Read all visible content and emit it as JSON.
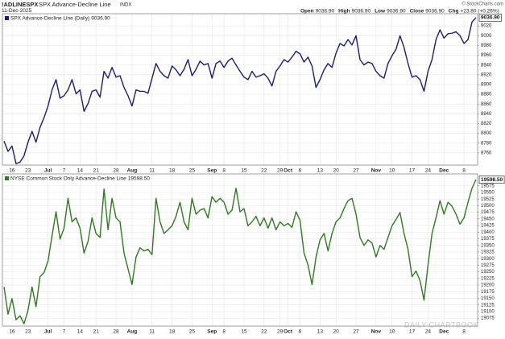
{
  "header": {
    "symbol": "!ADLINESPX",
    "name": "SPX Advance-Decline Line",
    "exchange": "INDX",
    "date": "11-Dec-2025",
    "quote": [
      {
        "label": "Open",
        "value": "9036.90"
      },
      {
        "label": "High",
        "value": "9036.90"
      },
      {
        "label": "Low",
        "value": "9036.90"
      },
      {
        "label": "Close",
        "value": "9036.90"
      },
      {
        "label": "Chg",
        "value": "+23.80 (+0.26%)"
      }
    ],
    "copyright": "© StockCharts.com",
    "watermark": "DAILY CHARTBOOK"
  },
  "chart_data": [
    {
      "type": "line",
      "grid": true,
      "categories": [
        null,
        null,
        "16",
        null,
        null,
        null,
        "23",
        null,
        null,
        null,
        null,
        "Jul",
        null,
        null,
        null,
        "7",
        null,
        null,
        null,
        "14",
        null,
        null,
        null,
        "21",
        null,
        null,
        null,
        null,
        "28",
        null,
        null,
        null,
        "Aug",
        null,
        null,
        null,
        null,
        "11",
        null,
        null,
        null,
        null,
        "18",
        null,
        null,
        null,
        null,
        "25",
        null,
        null,
        null,
        null,
        "Sep",
        null,
        null,
        "8",
        null,
        null,
        null,
        null,
        "15",
        null,
        null,
        null,
        null,
        "22",
        null,
        null,
        null,
        "29",
        null,
        "Oct",
        null,
        null,
        "6",
        null,
        null,
        null,
        null,
        "13",
        null,
        null,
        null,
        "20",
        null,
        null,
        null,
        null,
        "27",
        null,
        null,
        null,
        null,
        "Nov",
        null,
        null,
        null,
        "10",
        null,
        null,
        null,
        null,
        "17",
        null,
        null,
        null,
        "24",
        null,
        null,
        null,
        "Dec",
        null,
        null,
        null,
        null,
        "8",
        null,
        null,
        null
      ],
      "series": [
        {
          "name": "SPX Advance-Decline Line (Daily)",
          "color": "#1c1c78",
          "last_value_label": "9036.90",
          "values": [
            8784,
            8763,
            8774,
            8738,
            8741,
            8754,
            8782,
            8804,
            8782,
            8812,
            8832,
            8856,
            8889,
            8910,
            8872,
            8877,
            8889,
            8910,
            8881,
            8889,
            8845,
            8861,
            8886,
            8889,
            8874,
            8927,
            8913,
            8935,
            8915,
            8918,
            8894,
            8877,
            8856,
            8889,
            8886,
            8886,
            8882,
            8913,
            8943,
            8927,
            8918,
            8913,
            8938,
            8930,
            8918,
            8931,
            8951,
            8918,
            8931,
            8948,
            8940,
            8943,
            8913,
            8943,
            8948,
            8935,
            8948,
            8954,
            8940,
            8927,
            8915,
            8910,
            8927,
            8915,
            8918,
            8922,
            8913,
            8897,
            8927,
            8938,
            8951,
            8946,
            8956,
            8968,
            8963,
            8946,
            8956,
            8938,
            8894,
            8910,
            8930,
            8943,
            8935,
            8964,
            8984,
            8979,
            8992,
            8981,
            9000,
            8951,
            8940,
            8946,
            8943,
            8927,
            8918,
            8913,
            8943,
            8959,
            8972,
            9000,
            8976,
            8943,
            8915,
            8918,
            8910,
            8886,
            8927,
            8951,
            8992,
            9012,
            8995,
            9004,
            9005,
            9008,
            9000,
            8984,
            8992,
            9028,
            9036.9
          ]
        }
      ],
      "ylim": [
        8735,
        9045
      ],
      "yticks": [
        8760,
        8780,
        8800,
        8820,
        8840,
        8860,
        8880,
        8900,
        8920,
        8940,
        8960,
        8980,
        9000,
        9020
      ]
    },
    {
      "type": "line",
      "grid": true,
      "categories": [
        null,
        null,
        "16",
        null,
        null,
        null,
        "23",
        null,
        null,
        null,
        null,
        "Jul",
        null,
        null,
        null,
        "7",
        null,
        null,
        null,
        "14",
        null,
        null,
        null,
        "21",
        null,
        null,
        null,
        null,
        "28",
        null,
        null,
        null,
        "Aug",
        null,
        null,
        null,
        null,
        "11",
        null,
        null,
        null,
        null,
        "18",
        null,
        null,
        null,
        null,
        "25",
        null,
        null,
        null,
        null,
        "Sep",
        null,
        null,
        "8",
        null,
        null,
        null,
        null,
        "15",
        null,
        null,
        null,
        null,
        "22",
        null,
        null,
        null,
        "29",
        null,
        "Oct",
        null,
        null,
        "6",
        null,
        null,
        null,
        null,
        "13",
        null,
        null,
        null,
        "20",
        null,
        null,
        null,
        null,
        "27",
        null,
        null,
        null,
        null,
        "Nov",
        null,
        null,
        null,
        "10",
        null,
        null,
        null,
        null,
        "17",
        null,
        null,
        null,
        "24",
        null,
        null,
        null,
        "Dec",
        null,
        null,
        null,
        null,
        "8",
        null,
        null,
        null
      ],
      "series": [
        {
          "name": "NYSE Common Stock Only Advance-Decline Line",
          "color": "#2f7a1f",
          "last_value_label": "19598.50",
          "values": [
            19193,
            19090,
            19149,
            19069,
            19084,
            19054,
            19105,
            19193,
            19119,
            19232,
            19247,
            19291,
            19386,
            19477,
            19374,
            19415,
            19528,
            19439,
            19454,
            19415,
            19321,
            19365,
            19454,
            19395,
            19380,
            19563,
            19409,
            19528,
            19454,
            19439,
            19321,
            19261,
            19202,
            19306,
            19341,
            19329,
            19335,
            19315,
            19528,
            19439,
            19395,
            19409,
            19424,
            19460,
            19513,
            19439,
            19409,
            19528,
            19468,
            19483,
            19489,
            19454,
            19534,
            19513,
            19528,
            19513,
            19468,
            19483,
            19566,
            19477,
            19489,
            19424,
            19439,
            19460,
            19424,
            19454,
            19415,
            19454,
            19409,
            19439,
            19424,
            19433,
            19418,
            19477,
            19445,
            19321,
            19276,
            19202,
            19306,
            19371,
            19395,
            19329,
            19395,
            19439,
            19454,
            19489,
            19519,
            19528,
            19468,
            19380,
            19350,
            19371,
            19359,
            19306,
            19350,
            19335,
            19380,
            19424,
            19448,
            19474,
            19395,
            19335,
            19232,
            19253,
            19217,
            19143,
            19276,
            19395,
            19454,
            19519,
            19468,
            19513,
            19498,
            19468,
            19430,
            19454,
            19513,
            19566,
            19598.5
          ]
        }
      ],
      "ylim": [
        19045,
        19620
      ],
      "yticks": [
        19075,
        19100,
        19125,
        19150,
        19175,
        19200,
        19225,
        19250,
        19275,
        19300,
        19325,
        19350,
        19375,
        19400,
        19425,
        19450,
        19475,
        19500,
        19525,
        19550,
        19575
      ]
    }
  ]
}
